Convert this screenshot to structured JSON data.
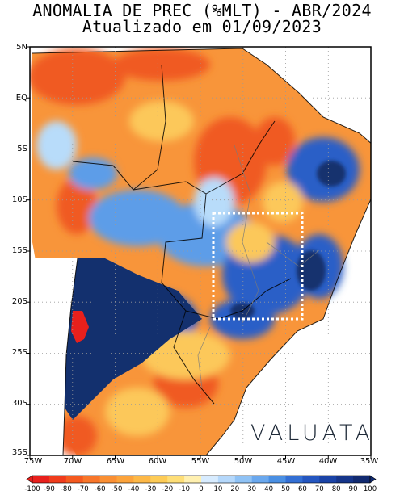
{
  "title": {
    "line1": "ANOMALIA DE PREC (%MLT) - ABR/2024",
    "line2": "Atualizado em 01/09/2023"
  },
  "brand": "VALUATA",
  "axes": {
    "y_labels": [
      "5N",
      "EQ",
      "5S",
      "10S",
      "15S",
      "20S",
      "25S",
      "30S",
      "35S"
    ],
    "x_labels": [
      "75W",
      "70W",
      "65W",
      "60W",
      "55W",
      "50W",
      "45W",
      "40W",
      "35W"
    ],
    "lat_range": [
      -35,
      5
    ],
    "lon_range": [
      -75,
      -35
    ]
  },
  "highlight_box": {
    "lon_range": [
      -52.8,
      -43.2
    ],
    "lat_range": [
      -21.8,
      -11.6
    ]
  },
  "colorbar": {
    "labels": [
      "-100",
      "-90",
      "-80",
      "-70",
      "-60",
      "-50",
      "-40",
      "-30",
      "-20",
      "-10",
      "0",
      "10",
      "20",
      "30",
      "40",
      "50",
      "60",
      "70",
      "80",
      "90",
      "100"
    ],
    "colors": [
      "#e8201c",
      "#f03c1c",
      "#f55a1f",
      "#f8762a",
      "#fa8f33",
      "#fca33b",
      "#fdb847",
      "#fdcb56",
      "#fede77",
      "#fff0b0",
      "#d8ecff",
      "#b5d8fb",
      "#8fc2f5",
      "#6aa8ee",
      "#4a8fe3",
      "#336fd4",
      "#2456c0",
      "#1a43a6",
      "#15358a",
      "#112a70"
    ],
    "unit": "%MLT"
  },
  "colors": {
    "dry_strong": "#f05a22",
    "dry": "#f8953a",
    "dry_weak": "#fcc85a",
    "neutral": "#fff4c8",
    "wet_weak": "#b8dcfa",
    "wet": "#5d9de8",
    "wet_strong": "#2a5fc7",
    "wet_very_strong": "#13306e"
  }
}
